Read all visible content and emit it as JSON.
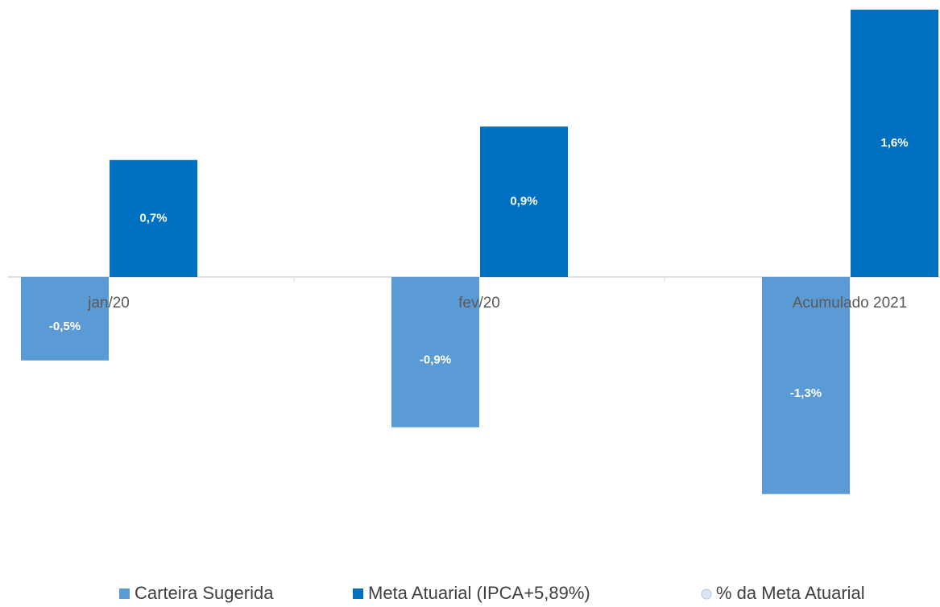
{
  "chart_data": {
    "type": "bar",
    "categories": [
      "jan/20",
      "fev/20",
      "Acumulado 2021"
    ],
    "series": [
      {
        "name": "Carteira Sugerida",
        "color": "#5b9bd5",
        "values": [
          -0.5,
          -0.9,
          -1.3
        ],
        "value_labels": [
          "-0,5%",
          "-0,9%",
          "-1,3%"
        ]
      },
      {
        "name": "Meta Atuarial (IPCA+5,89%)",
        "color": "#0070c0",
        "values": [
          0.7,
          0.9,
          1.6
        ],
        "value_labels": [
          "0,7%",
          "0,9%",
          "1,6%"
        ]
      },
      {
        "name": "% da Meta Atuarial",
        "color": "#dce6f2",
        "values": [
          null,
          null,
          null
        ]
      }
    ],
    "ylim": [
      -1.6,
      1.6
    ]
  }
}
